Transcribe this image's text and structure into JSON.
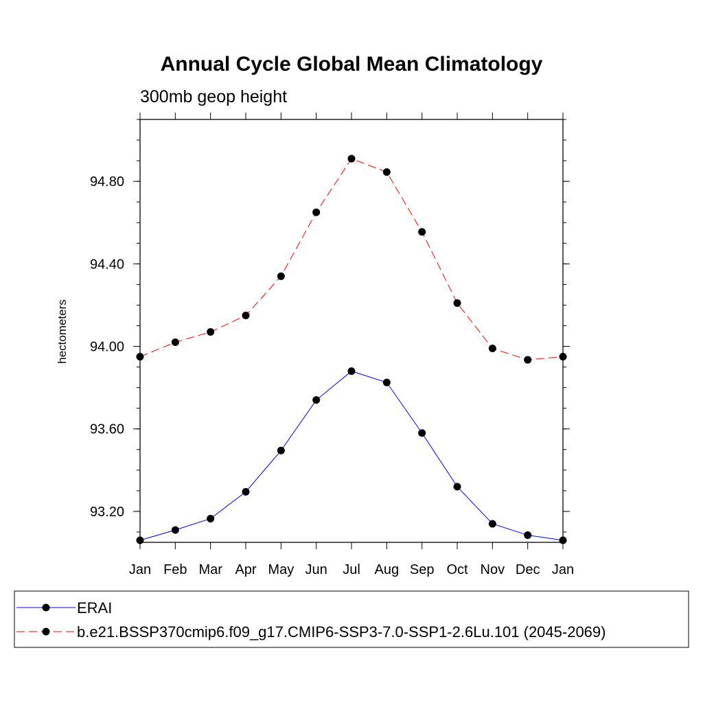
{
  "chart_data": {
    "type": "line",
    "title": "Annual Cycle Global Mean Climatology",
    "subtitle": "300mb geop height",
    "xlabel": "",
    "ylabel": "hectometers",
    "categories": [
      "Jan",
      "Feb",
      "Mar",
      "Apr",
      "May",
      "Jun",
      "Jul",
      "Aug",
      "Sep",
      "Oct",
      "Nov",
      "Dec",
      "Jan"
    ],
    "yticks": [
      "93.20",
      "93.60",
      "94.00",
      "94.40",
      "94.80"
    ],
    "ylim": [
      93.05,
      95.1
    ],
    "grid": false,
    "legend_position": "bottom",
    "series": [
      {
        "name": "ERAI",
        "color": "#0000ff",
        "line_style": "solid",
        "marker": "filled-circle",
        "values": [
          93.06,
          93.11,
          93.165,
          93.295,
          93.495,
          93.74,
          93.88,
          93.825,
          93.58,
          93.32,
          93.14,
          93.085,
          93.06
        ]
      },
      {
        "name": "b.e21.BSSP370cmip6.f09_g17.CMIP6-SSP3-7.0-SSP1-2.6Lu.101 (2045-2069)",
        "color": "#ff0000",
        "line_style": "dashed",
        "marker": "filled-circle",
        "values": [
          93.95,
          94.02,
          94.07,
          94.15,
          94.34,
          94.65,
          94.91,
          94.845,
          94.555,
          94.21,
          93.99,
          93.935,
          93.95
        ]
      }
    ]
  }
}
